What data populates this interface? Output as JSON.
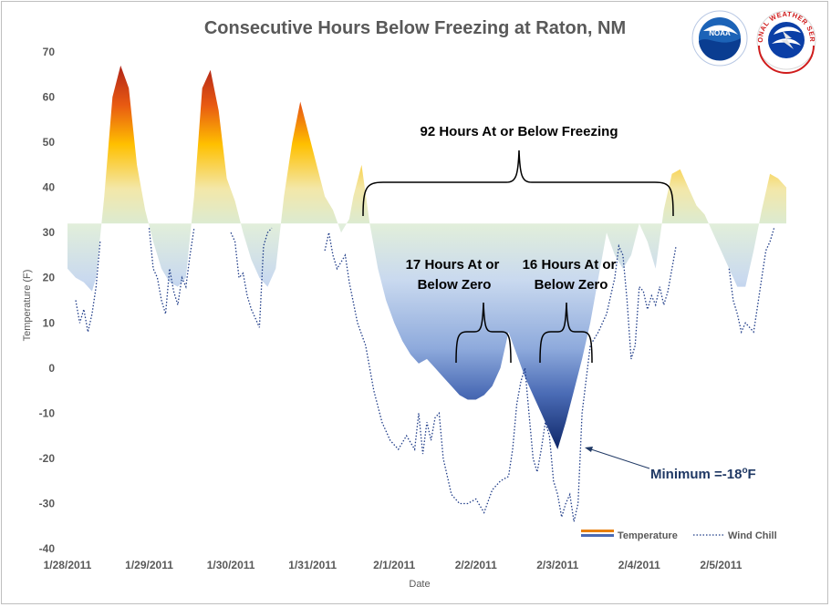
{
  "chart_data": {
    "type": "area",
    "title": "Consecutive Hours Below Freezing at Raton, NM",
    "xlabel": "Date",
    "ylabel": "Temperature (F)",
    "ylim": [
      -40,
      70
    ],
    "yticks": [
      70,
      60,
      50,
      40,
      30,
      20,
      10,
      0,
      -10,
      -20,
      -30,
      -40
    ],
    "freezing_line": 32,
    "x_tick_labels": [
      "1/28/2011",
      "1/29/2011",
      "1/30/2011",
      "1/31/2011",
      "2/1/2011",
      "2/2/2011",
      "2/3/2011",
      "2/4/2011",
      "2/5/2011"
    ],
    "x_range_days": [
      0,
      8.8
    ],
    "grid": false,
    "legend_position": "bottom-right",
    "series": [
      {
        "name": "Temperature",
        "x": [
          0.0,
          0.1,
          0.2,
          0.3,
          0.35,
          0.45,
          0.55,
          0.65,
          0.75,
          0.85,
          0.95,
          1.05,
          1.15,
          1.25,
          1.35,
          1.45,
          1.55,
          1.65,
          1.75,
          1.85,
          1.95,
          2.05,
          2.15,
          2.25,
          2.35,
          2.45,
          2.55,
          2.65,
          2.75,
          2.85,
          2.95,
          3.05,
          3.15,
          3.25,
          3.35,
          3.45,
          3.5,
          3.6,
          3.7,
          3.8,
          3.9,
          4.0,
          4.1,
          4.2,
          4.3,
          4.4,
          4.5,
          4.6,
          4.7,
          4.8,
          4.9,
          5.0,
          5.1,
          5.2,
          5.3,
          5.4,
          5.5,
          5.6,
          5.7,
          5.8,
          5.9,
          6.0,
          6.1,
          6.2,
          6.3,
          6.4,
          6.5,
          6.6,
          6.7,
          6.8,
          6.9,
          7.0,
          7.1,
          7.2,
          7.3,
          7.4,
          7.5,
          7.6,
          7.7,
          7.8,
          7.9,
          8.0,
          8.1,
          8.2,
          8.3,
          8.4,
          8.5,
          8.6,
          8.7,
          8.8
        ],
        "values": [
          22,
          20,
          19,
          17,
          20,
          38,
          60,
          67,
          62,
          45,
          35,
          28,
          22,
          19,
          18,
          20,
          38,
          62,
          66,
          57,
          42,
          37,
          30,
          24,
          20,
          18,
          22,
          38,
          50,
          59,
          52,
          45,
          38,
          35,
          30,
          33,
          38,
          45,
          32,
          22,
          15,
          10,
          6,
          3,
          1,
          2,
          0,
          -2,
          -4,
          -6,
          -7,
          -7,
          -6,
          -4,
          0,
          8,
          3,
          -2,
          -6,
          -10,
          -14,
          -18,
          -12,
          -5,
          2,
          10,
          20,
          30,
          25,
          22,
          25,
          32,
          28,
          22,
          35,
          43,
          44,
          40,
          36,
          34,
          30,
          26,
          22,
          18,
          18,
          26,
          35,
          43,
          42,
          40
        ]
      },
      {
        "name": "Wind Chill",
        "x": [
          0.1,
          0.15,
          0.2,
          0.25,
          0.3,
          0.35,
          0.4,
          1.0,
          1.05,
          1.1,
          1.15,
          1.2,
          1.25,
          1.3,
          1.35,
          1.4,
          1.45,
          1.5,
          1.55,
          2.0,
          2.05,
          2.1,
          2.15,
          2.2,
          2.25,
          2.3,
          2.35,
          2.4,
          2.45,
          2.5,
          3.15,
          3.2,
          3.25,
          3.3,
          3.4,
          3.45,
          3.55,
          3.65,
          3.75,
          3.85,
          3.95,
          4.05,
          4.15,
          4.25,
          4.3,
          4.35,
          4.4,
          4.45,
          4.5,
          4.55,
          4.6,
          4.7,
          4.8,
          4.9,
          5.0,
          5.1,
          5.2,
          5.3,
          5.4,
          5.45,
          5.5,
          5.55,
          5.6,
          5.65,
          5.7,
          5.75,
          5.8,
          5.85,
          5.9,
          5.95,
          6.0,
          6.05,
          6.1,
          6.15,
          6.2,
          6.25,
          6.3,
          6.4,
          6.5,
          6.6,
          6.7,
          6.75,
          6.8,
          6.85,
          6.9,
          6.95,
          7.0,
          7.05,
          7.1,
          7.15,
          7.2,
          7.25,
          7.3,
          7.35,
          7.45,
          8.1,
          8.15,
          8.2,
          8.25,
          8.3,
          8.35,
          8.4,
          8.45,
          8.5,
          8.55,
          8.6,
          8.65
        ],
        "values": [
          15,
          10,
          13,
          8,
          12,
          18,
          28,
          31,
          22,
          20,
          15,
          12,
          22,
          17,
          14,
          20,
          18,
          25,
          31,
          30,
          28,
          20,
          21,
          16,
          13,
          11,
          9,
          27,
          30,
          31,
          26,
          30,
          25,
          22,
          25,
          19,
          10,
          5,
          -5,
          -12,
          -16,
          -18,
          -15,
          -18,
          -10,
          -19,
          -12,
          -16,
          -11,
          -10,
          -20,
          -28,
          -30,
          -30,
          -29,
          -32,
          -27,
          -25,
          -24,
          -18,
          -8,
          -3,
          0,
          -10,
          -20,
          -23,
          -18,
          -12,
          -15,
          -25,
          -28,
          -33,
          -30,
          -28,
          -34,
          -30,
          -10,
          5,
          8,
          12,
          20,
          27,
          25,
          15,
          2,
          5,
          18,
          17,
          13,
          16,
          14,
          18,
          14,
          17,
          27,
          22,
          15,
          12,
          8,
          10,
          9,
          8,
          14,
          20,
          26,
          28,
          31
        ]
      }
    ],
    "annotations": {
      "freeze_period": "92 Hours At or Below Freezing",
      "zero_period_1_line1": "17 Hours At or",
      "zero_period_1_line2": "Below Zero",
      "zero_period_2_line1": "16 Hours At or",
      "zero_period_2_line2": "Below Zero",
      "minimum": "Minimum =-18",
      "minimum_unit": "F",
      "minimum_degree": "o"
    },
    "logos": {
      "noaa": "NOAA",
      "nws": "NATIONAL WEATHER SERVICE"
    },
    "colors": {
      "warm_top": "#c0391b",
      "warm_mid": "#ffc000",
      "warm_low": "#e2efda",
      "cold_top": "#e2efda",
      "cold_mid": "#9bb7e0",
      "cold_bottom": "#0f2a6b",
      "windchill": "#1f3c88",
      "min_label": "#1f3864"
    }
  }
}
